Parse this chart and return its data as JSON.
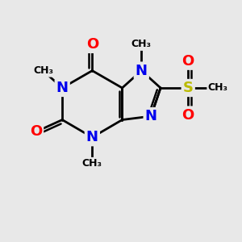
{
  "background_color": "#e8e8e8",
  "bond_color": "#000000",
  "bond_width": 2.0,
  "atom_colors": {
    "N": "#0000ee",
    "O": "#ff0000",
    "S": "#bbbb00",
    "C": "#000000"
  },
  "font_size": 13,
  "fig_width": 3.0,
  "fig_height": 3.0,
  "dpi": 100,
  "xlim": [
    0,
    10
  ],
  "ylim": [
    0,
    10
  ]
}
